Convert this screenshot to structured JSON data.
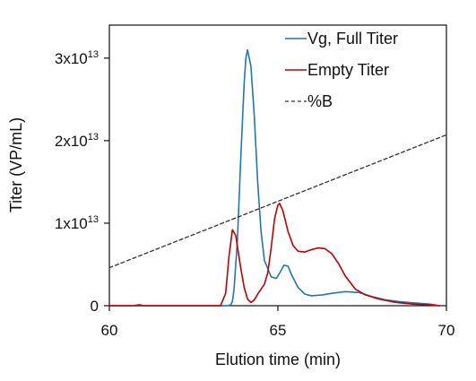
{
  "chart_data": {
    "type": "line",
    "title": "",
    "xlabel": "Elution time (min)",
    "ylabel": "Titer (VP/mL)",
    "xlim": [
      60,
      70
    ],
    "ylim": [
      0,
      34000000000000
    ],
    "grid": false,
    "legend_position": "top-right",
    "x_ticks": [
      {
        "value": 60,
        "label": "60"
      },
      {
        "value": 65,
        "label": "65"
      },
      {
        "value": 70,
        "label": "70"
      }
    ],
    "y_ticks": [
      {
        "value": 0,
        "label": "0",
        "base": "0",
        "exp": ""
      },
      {
        "value": 10000000000000,
        "label": "1x10^13",
        "base": "1x10",
        "exp": "13"
      },
      {
        "value": 20000000000000,
        "label": "2x10^13",
        "base": "2x10",
        "exp": "13"
      },
      {
        "value": 30000000000000,
        "label": "3x10^13",
        "base": "3x10",
        "exp": "13"
      }
    ],
    "series": [
      {
        "name": "Vg, Full Titer",
        "color": "#1f77b4",
        "line_style": "solid",
        "x": [
          60.0,
          60.7,
          60.9,
          61.0,
          61.2,
          62.0,
          63.0,
          63.5,
          63.6,
          63.65,
          63.7,
          63.8,
          63.9,
          64.0,
          64.05,
          64.1,
          64.2,
          64.3,
          64.4,
          64.5,
          64.6,
          64.8,
          64.95,
          65.0,
          65.1,
          65.18,
          65.3,
          65.4,
          65.6,
          65.8,
          66.0,
          66.3,
          66.6,
          67.0,
          67.4,
          67.8,
          68.2,
          68.6,
          69.0,
          69.5,
          69.8
        ],
        "y": [
          0,
          0,
          150000000000,
          0,
          0,
          0,
          0,
          0,
          100000000000,
          500000000000,
          2000000000000,
          8000000000000,
          18000000000000,
          27000000000000,
          30000000000000,
          31000000000000,
          29000000000000,
          23000000000000,
          15000000000000,
          9000000000000,
          5500000000000,
          3500000000000,
          3300000000000,
          3600000000000,
          4300000000000,
          4900000000000,
          4800000000000,
          3800000000000,
          2200000000000,
          1400000000000,
          1200000000000,
          1300000000000,
          1500000000000,
          1700000000000,
          1600000000000,
          1100000000000,
          700000000000,
          500000000000,
          350000000000,
          200000000000,
          0
        ]
      },
      {
        "name": "Empty Titer",
        "color": "#c00000",
        "line_style": "solid",
        "x": [
          60.0,
          61.0,
          62.0,
          63.0,
          63.3,
          63.45,
          63.55,
          63.65,
          63.75,
          63.9,
          64.0,
          64.1,
          64.2,
          64.3,
          64.4,
          64.5,
          64.6,
          64.7,
          64.8,
          64.9,
          65.0,
          65.05,
          65.15,
          65.3,
          65.45,
          65.6,
          65.8,
          66.0,
          66.2,
          66.4,
          66.6,
          66.8,
          67.0,
          67.3,
          67.6,
          68.0,
          68.5,
          69.0,
          69.5,
          69.8
        ],
        "y": [
          0,
          0,
          0,
          0,
          0,
          1500000000000,
          6000000000000,
          9200000000000,
          8500000000000,
          4500000000000,
          2200000000000,
          800000000000,
          400000000000,
          700000000000,
          1400000000000,
          2000000000000,
          2600000000000,
          4000000000000,
          7000000000000,
          10500000000000,
          12200000000000,
          12400000000000,
          11500000000000,
          9000000000000,
          7300000000000,
          6600000000000,
          6500000000000,
          6800000000000,
          7000000000000,
          6900000000000,
          6300000000000,
          5100000000000,
          3600000000000,
          2000000000000,
          1300000000000,
          800000000000,
          400000000000,
          200000000000,
          100000000000,
          0
        ]
      },
      {
        "name": "%B",
        "color": "#333333",
        "line_style": "dashed",
        "x": [
          60,
          70
        ],
        "y": [
          4600000000000,
          20700000000000
        ]
      }
    ]
  }
}
